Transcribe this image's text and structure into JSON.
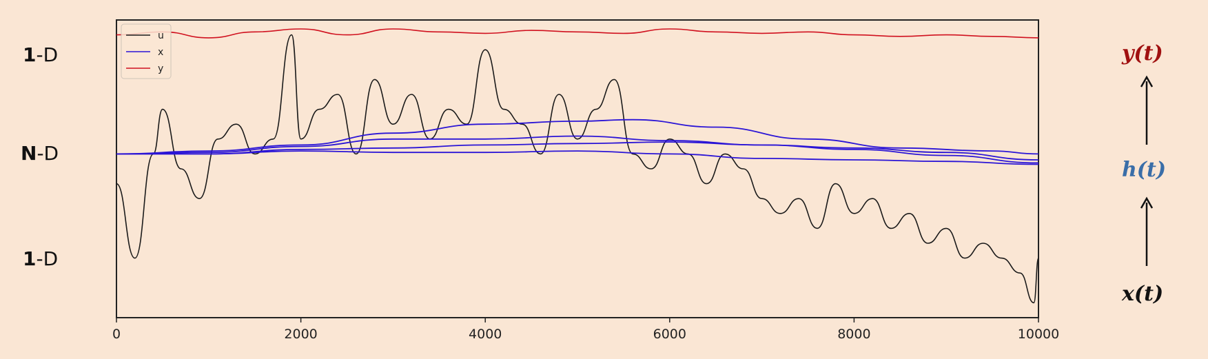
{
  "row_labels": {
    "top": {
      "bold": "1",
      "rest": "-D"
    },
    "middle": {
      "bold": "N",
      "rest": "-D"
    },
    "bottom": {
      "bold": "1",
      "rest": "-D"
    }
  },
  "side_labels": {
    "output": "y(t)",
    "hidden": "h(t)",
    "input": "x(t)"
  },
  "colors": {
    "background": "#fae6d4",
    "u": "#1a1a1a",
    "x": "#2a14d6",
    "y": "#d0101e",
    "output_label": "#a01010",
    "hidden_label": "#3a6ea8",
    "input_label": "#111111"
  },
  "chart_data": {
    "type": "line",
    "xlim": [
      0,
      10000
    ],
    "x_ticks": [
      0,
      2000,
      4000,
      6000,
      8000,
      10000
    ],
    "x_tick_labels": [
      "0",
      "2000",
      "4000",
      "6000",
      "8000",
      "10000"
    ],
    "xlabel": "",
    "ylabel": "",
    "legend_placement": "top-left",
    "series": [
      {
        "name": "u",
        "color": "#1a1a1a",
        "x": [
          0,
          200,
          400,
          500,
          700,
          900,
          1100,
          1300,
          1500,
          1700,
          1900,
          2000,
          2200,
          2400,
          2600,
          2800,
          3000,
          3200,
          3400,
          3600,
          3800,
          4000,
          4200,
          4400,
          4600,
          4800,
          5000,
          5200,
          5400,
          5600,
          5800,
          6000,
          6200,
          6400,
          6600,
          6800,
          7000,
          7200,
          7400,
          7600,
          7800,
          8000,
          8200,
          8400,
          8600,
          8800,
          9000,
          9200,
          9400,
          9600,
          9800,
          9950,
          10000
        ],
        "values": [
          0.45,
          0.2,
          0.55,
          0.7,
          0.5,
          0.4,
          0.6,
          0.65,
          0.55,
          0.6,
          0.95,
          0.6,
          0.7,
          0.75,
          0.55,
          0.8,
          0.65,
          0.75,
          0.6,
          0.7,
          0.65,
          0.9,
          0.7,
          0.65,
          0.55,
          0.75,
          0.6,
          0.7,
          0.8,
          0.55,
          0.5,
          0.6,
          0.55,
          0.45,
          0.55,
          0.5,
          0.4,
          0.35,
          0.4,
          0.3,
          0.45,
          0.35,
          0.4,
          0.3,
          0.35,
          0.25,
          0.3,
          0.2,
          0.25,
          0.2,
          0.15,
          0.05,
          0.2
        ]
      },
      {
        "name": "x",
        "color": "#2a14d6",
        "lines": [
          {
            "x": [
              0,
              1000,
              2000,
              3000,
              4000,
              5000,
              5600,
              6500,
              7500,
              8500,
              9500,
              10000
            ],
            "values": [
              0.55,
              0.56,
              0.58,
              0.62,
              0.65,
              0.66,
              0.665,
              0.64,
              0.6,
              0.57,
              0.56,
              0.55
            ]
          },
          {
            "x": [
              0,
              1000,
              2000,
              3000,
              4000,
              5000,
              6000,
              7000,
              8000,
              9000,
              10000
            ],
            "values": [
              0.55,
              0.555,
              0.575,
              0.6,
              0.6,
              0.61,
              0.595,
              0.58,
              0.57,
              0.555,
              0.53
            ]
          },
          {
            "x": [
              0,
              1000,
              2000,
              3000,
              4000,
              5000,
              6000,
              7000,
              8000,
              9000,
              10000
            ],
            "values": [
              0.55,
              0.55,
              0.565,
              0.57,
              0.58,
              0.585,
              0.59,
              0.58,
              0.565,
              0.545,
              0.52
            ]
          },
          {
            "x": [
              0,
              1000,
              2000,
              3000,
              4000,
              5000,
              6000,
              7000,
              8000,
              9000,
              10000
            ],
            "values": [
              0.55,
              0.55,
              0.56,
              0.555,
              0.555,
              0.56,
              0.55,
              0.535,
              0.53,
              0.525,
              0.515
            ]
          }
        ]
      },
      {
        "name": "y",
        "color": "#d0101e",
        "x": [
          0,
          500,
          1000,
          1500,
          2000,
          2500,
          3000,
          3500,
          4000,
          4500,
          5000,
          5500,
          6000,
          6500,
          7000,
          7500,
          8000,
          8500,
          9000,
          9500,
          10000
        ],
        "values": [
          0.95,
          0.96,
          0.94,
          0.96,
          0.97,
          0.95,
          0.97,
          0.96,
          0.955,
          0.965,
          0.96,
          0.955,
          0.97,
          0.96,
          0.955,
          0.96,
          0.95,
          0.945,
          0.95,
          0.945,
          0.94
        ]
      }
    ]
  }
}
